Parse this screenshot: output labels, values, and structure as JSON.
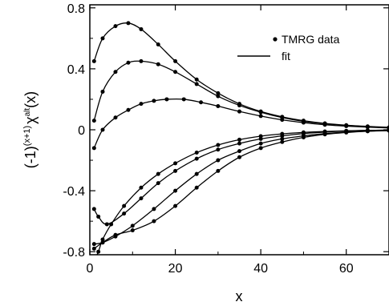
{
  "chart_data": {
    "type": "scatter",
    "xlabel": "x",
    "ylabel_base": "(-1)",
    "ylabel_exp": "(x+1)",
    "ylabel_chi": "χ",
    "ylabel_sup": "alt",
    "ylabel_arg": "(x)",
    "xlim": [
      0,
      70
    ],
    "ylim": [
      -0.82,
      0.82
    ],
    "xticks": [
      0,
      20,
      40,
      60
    ],
    "xtick_labels": [
      "0",
      "20",
      "40",
      "60"
    ],
    "yticks": [
      0.8,
      0.4,
      0,
      -0.4,
      -0.8
    ],
    "ytick_labels": [
      "0.8",
      "0.4",
      "0",
      "-0.4",
      "-0.8"
    ],
    "legend": {
      "placement": "top-right",
      "entries": [
        {
          "label": "TMRG data",
          "marker": "dot"
        },
        {
          "label": "fit",
          "marker": "line"
        }
      ]
    },
    "series": [
      {
        "x": [
          1,
          3,
          6,
          9,
          12,
          16,
          20,
          25,
          30,
          35,
          40,
          45,
          50,
          55,
          60,
          65,
          70
        ],
        "values": [
          0.45,
          0.6,
          0.68,
          0.7,
          0.66,
          0.56,
          0.45,
          0.33,
          0.24,
          0.17,
          0.12,
          0.085,
          0.06,
          0.042,
          0.03,
          0.022,
          0.016
        ]
      },
      {
        "x": [
          1,
          3,
          6,
          9,
          12,
          16,
          20,
          25,
          30,
          35,
          40,
          45,
          50,
          55,
          60,
          65,
          70
        ],
        "values": [
          0.06,
          0.25,
          0.38,
          0.44,
          0.45,
          0.43,
          0.38,
          0.3,
          0.22,
          0.16,
          0.115,
          0.08,
          0.055,
          0.04,
          0.028,
          0.02,
          0.014
        ]
      },
      {
        "x": [
          1,
          3,
          6,
          9,
          12,
          15,
          18,
          22,
          26,
          30,
          35,
          40,
          45,
          50,
          55,
          60,
          65,
          70
        ],
        "values": [
          -0.12,
          0.0,
          0.08,
          0.13,
          0.17,
          0.19,
          0.2,
          0.2,
          0.18,
          0.155,
          0.12,
          0.09,
          0.065,
          0.047,
          0.033,
          0.024,
          0.017,
          0.012
        ]
      },
      {
        "x": [
          1,
          2,
          4,
          8,
          12,
          16,
          20,
          25,
          30,
          35,
          40,
          45,
          50,
          55,
          60,
          65,
          70
        ],
        "values": [
          -0.52,
          -0.57,
          -0.62,
          -0.55,
          -0.45,
          -0.35,
          -0.27,
          -0.19,
          -0.13,
          -0.09,
          -0.06,
          -0.04,
          -0.025,
          -0.015,
          -0.008,
          -0.004,
          -0.002
        ]
      },
      {
        "x": [
          1,
          3,
          6,
          10,
          15,
          20,
          25,
          30,
          35,
          40,
          45,
          50,
          55,
          60,
          65,
          70
        ],
        "values": [
          -0.75,
          -0.74,
          -0.7,
          -0.63,
          -0.52,
          -0.4,
          -0.29,
          -0.2,
          -0.14,
          -0.09,
          -0.06,
          -0.04,
          -0.025,
          -0.015,
          -0.009,
          -0.005
        ]
      },
      {
        "x": [
          1,
          3,
          6,
          10,
          15,
          20,
          25,
          30,
          35,
          40,
          45,
          50,
          55,
          60,
          65,
          70
        ],
        "values": [
          -0.78,
          -0.74,
          -0.69,
          -0.66,
          -0.6,
          -0.5,
          -0.38,
          -0.27,
          -0.18,
          -0.12,
          -0.08,
          -0.05,
          -0.03,
          -0.018,
          -0.01,
          -0.006
        ]
      },
      {
        "x": [
          1,
          2,
          3,
          5,
          8,
          12,
          16,
          20,
          25,
          30,
          35,
          40,
          45,
          50,
          55,
          60,
          65,
          70
        ],
        "values": [
          -0.86,
          -0.8,
          -0.72,
          -0.62,
          -0.5,
          -0.38,
          -0.29,
          -0.22,
          -0.15,
          -0.1,
          -0.065,
          -0.042,
          -0.027,
          -0.017,
          -0.011,
          -0.007,
          -0.004,
          -0.002
        ]
      }
    ]
  }
}
